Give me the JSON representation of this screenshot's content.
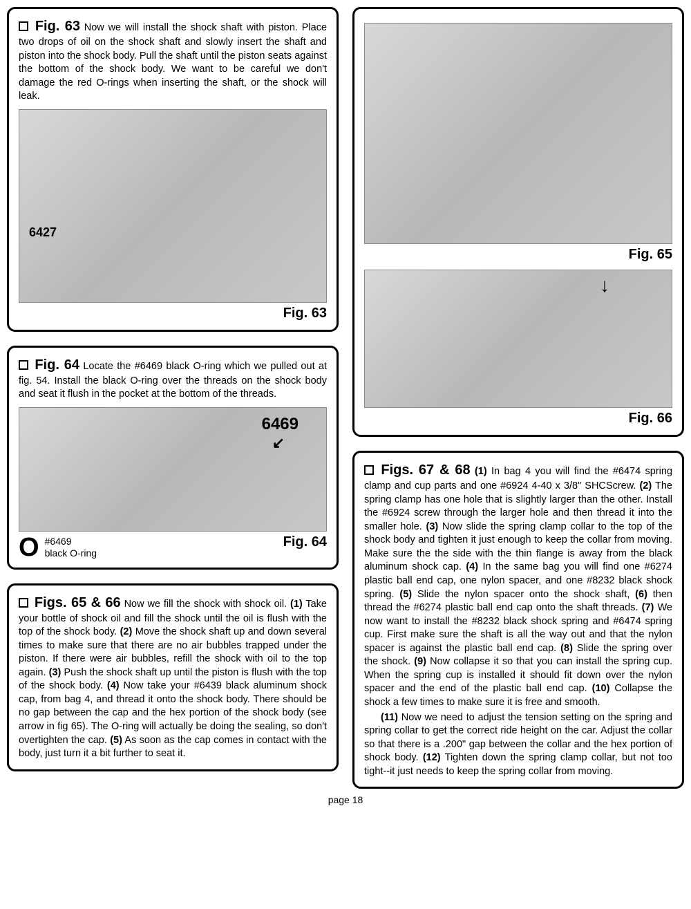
{
  "fig63": {
    "title": "Fig. 63",
    "text": "Now we will install the shock shaft with piston. Place two drops of oil on the shock shaft and slowly insert the shaft and piston into the shock body. Pull the shaft until the piston seats against the bottom of the shock body. We want to be careful we don't damage the red O-rings when inserting the shaft, or the shock will leak.",
    "part_label": "6427",
    "caption": "Fig. 63"
  },
  "fig64": {
    "title": "Fig. 64",
    "text": "Locate the #6469 black O-ring which we pulled out at fig. 54. Install the black O-ring over the threads on the shock body and seat it flush in the pocket at the bottom of the threads.",
    "part_label": "6469",
    "part_num": "#6469",
    "part_desc": "black O-ring",
    "caption": "Fig. 64"
  },
  "fig6566": {
    "title": "Figs. 65 & 66",
    "text": "Now we fill the shock with shock oil. (1) Take your bottle of shock oil and fill the shock until the oil is flush with the top of the shock body. (2) Move the shock shaft up and down several times to make sure that there are no air bubbles trapped under the piston. If there were air bubbles, refill the shock with oil to the top again. (3) Push the shock shaft up until the piston is flush with the top of the shock body. (4) Now take your #6439 black aluminum shock cap, from bag 4, and thread it onto the shock body. There should be no gap between the cap and the hex portion of the shock body (see arrow in fig 65). The O-ring will actually be doing the sealing, so don't overtighten the cap. (5) As soon as the cap comes in contact with the body, just turn it a bit further to seat it."
  },
  "fig65": {
    "caption": "Fig. 65"
  },
  "fig66": {
    "caption": "Fig. 66"
  },
  "fig6768": {
    "title": "Figs. 67 & 68",
    "text_p1": "(1) In bag 4 you will find the #6474 spring clamp and cup parts and one #6924 4-40 x 3/8\" SHCScrew. (2) The spring clamp has one hole that is slightly larger than the other. Install the #6924 screw through the larger hole and then thread it into the smaller hole. (3) Now slide the spring clamp collar to the top of the shock body and tighten it just enough to keep the collar from moving. Make sure the the side with the thin flange is away from the black aluminum shock cap. (4) In the same bag you will find one #6274 plastic ball end cap, one nylon spacer, and one #8232 black shock spring. (5) Slide the nylon spacer onto the shock shaft, (6) then thread the #6274 plastic ball end cap onto the shaft threads. (7) We now want to install the #8232 black shock spring and #6474 spring cup. First make sure the shaft is all the way out and that the nylon spacer is against the plastic ball end cap. (8) Slide the spring over the shock. (9) Now collapse it so that you can install the spring cup. When the spring cup is installed it should fit down over the nylon spacer and the end of the plastic ball end cap. (10) Collapse the shock a few times to make sure it is free and smooth.",
    "text_p2": "(11) Now we need to adjust the tension setting on the spring and spring collar to get the correct ride height on the car. Adjust the collar so that there is a .200\" gap between the collar and the hex portion of shock body. (12) Tighten down the spring clamp collar, but not too tight--it just needs to keep the spring collar from moving."
  },
  "footer": "page 18"
}
